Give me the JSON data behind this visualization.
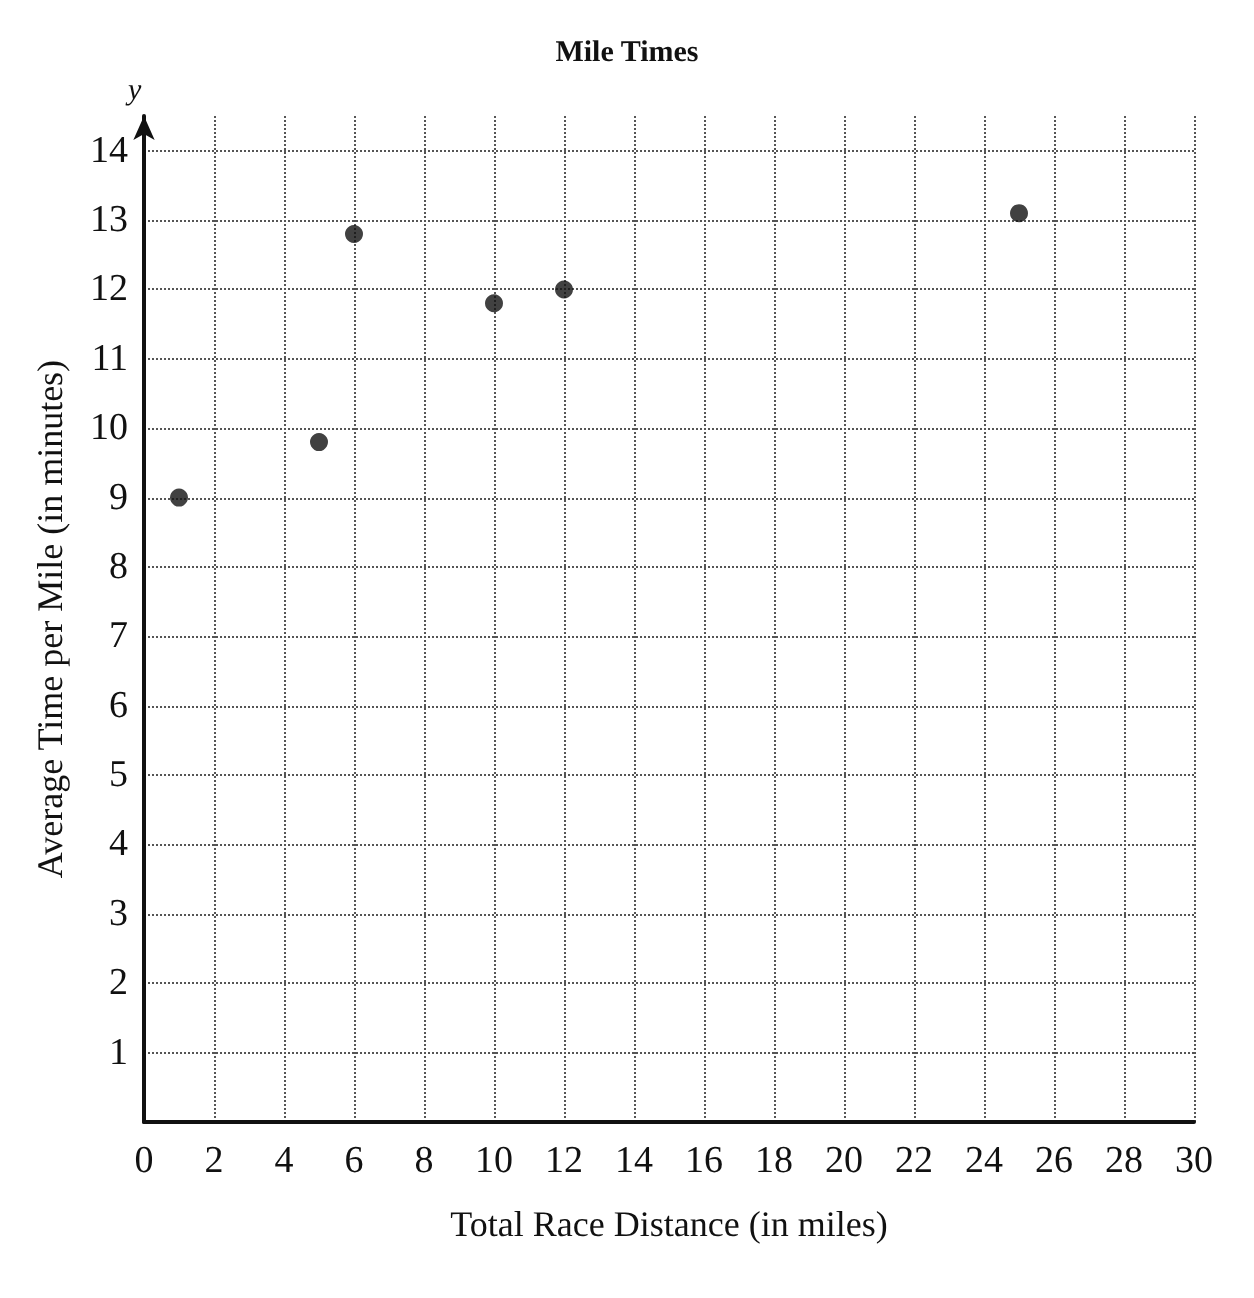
{
  "chart_data": {
    "type": "scatter",
    "title": "Mile Times",
    "xlabel": "Total Race Distance (in miles)",
    "ylabel": "Average Time per Mile (in minutes)",
    "annotations": [
      "y"
    ],
    "x": [
      1,
      5,
      6,
      10,
      12,
      25
    ],
    "values": [
      9,
      9.8,
      12.8,
      11.8,
      12,
      13.1
    ],
    "color": "#111111",
    "marker": "circle",
    "xlim": [
      0,
      30
    ],
    "xticks": [
      0,
      2,
      4,
      6,
      8,
      10,
      12,
      14,
      16,
      18,
      20,
      22,
      24,
      26,
      28,
      30
    ],
    "ylim": [
      0,
      14.5
    ],
    "yticks": [
      {
        "value": 0,
        "label": null
      },
      1,
      2,
      3,
      4,
      5,
      6,
      7,
      8,
      9,
      10,
      11,
      12,
      13,
      14
    ],
    "grid": true
  }
}
